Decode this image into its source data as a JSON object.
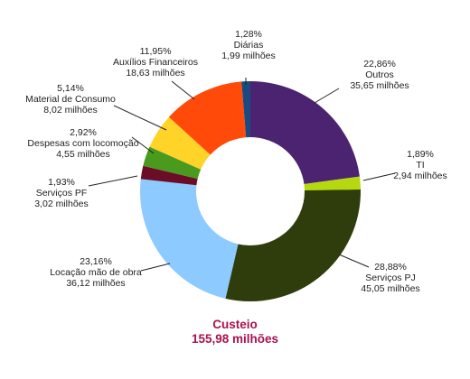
{
  "chart_data": {
    "type": "pie",
    "donut": true,
    "title": "Custeio",
    "subtitle": "155,98 milhões",
    "slices": [
      {
        "label": "Outros",
        "percent_label": "22,86%",
        "value_label": "35,65 milhões",
        "value": 35.65,
        "color": "#4b2370"
      },
      {
        "label": "TI",
        "percent_label": "1,89%",
        "value_label": "2,94 milhões",
        "value": 2.94,
        "color": "#b5d80e"
      },
      {
        "label": "Serviços PJ",
        "percent_label": "28,88%",
        "value_label": "45,05 milhões",
        "value": 45.05,
        "color": "#2e3d0b"
      },
      {
        "label": "Locação mão de obra",
        "percent_label": "23,16%",
        "value_label": "36,12 milhões",
        "value": 36.12,
        "color": "#8ccaff"
      },
      {
        "label": "Serviços PF",
        "percent_label": "1,93%",
        "value_label": "3,02 milhões",
        "value": 3.02,
        "color": "#6b0d26"
      },
      {
        "label": "Despesas com locomoção",
        "percent_label": "2,92%",
        "value_label": "4,55 milhões",
        "value": 4.55,
        "color": "#4a9a1e"
      },
      {
        "label": "Material de Consumo",
        "percent_label": "5,14%",
        "value_label": "8,02 milhões",
        "value": 8.02,
        "color": "#ffd327"
      },
      {
        "label": "Auxílios Financeiros",
        "percent_label": "11,95%",
        "value_label": "18,63 milhões",
        "value": 18.63,
        "color": "#ff4a0a"
      },
      {
        "label": "Diárias",
        "percent_label": "1,28%",
        "value_label": "1,99 milhões",
        "value": 1.99,
        "color": "#1b4a80"
      }
    ]
  }
}
